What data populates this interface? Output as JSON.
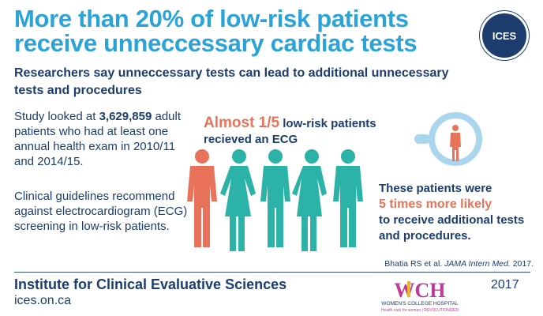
{
  "header": {
    "title": "More than 20% of low-risk patients receive unneccessary cardiac tests",
    "logo_text": "ICES",
    "subtitle": "Researchers say unneccessary tests can lead to additional unnecessary tests and procedures"
  },
  "study": {
    "line1_pre": "Study looked at ",
    "count": "3,629,859",
    "line1_post": " adult patients who had at least one annual health exam in 2010/11 and 2014/15."
  },
  "guidelines": "Clinical guidelines recommend against electrocardiogram (ECG) screening in low-risk patients.",
  "stat": {
    "highlight": "Almost 1/5",
    "rest": " low-risk patients recieved an ECG"
  },
  "result": {
    "pre": "These patients were",
    "highlight": "5 times more likely",
    "post": "to receive additional tests and procedures."
  },
  "citation": {
    "authors": "Bhatia RS et al. ",
    "journal": "JAMA Intern Med.",
    "year": " 2017."
  },
  "footer": {
    "org_name": "Institute for Clinical Evaluative Sciences",
    "url": "ices.on.ca",
    "year": "2017",
    "partner_logo": "WCH",
    "partner_name": "WOMEN'S COLLEGE HOSPITAL",
    "partner_tagline": "Health care for women | REVOLUTIONIZED"
  },
  "colors": {
    "title_blue": "#2aa3d9",
    "navy": "#1c3d6e",
    "teal": "#2ab3a6",
    "orange": "#e9735a",
    "light_blue": "#a9d6ec"
  },
  "icons": [
    "ices-logo",
    "person-icon",
    "magnifier-icon",
    "wch-logo"
  ]
}
